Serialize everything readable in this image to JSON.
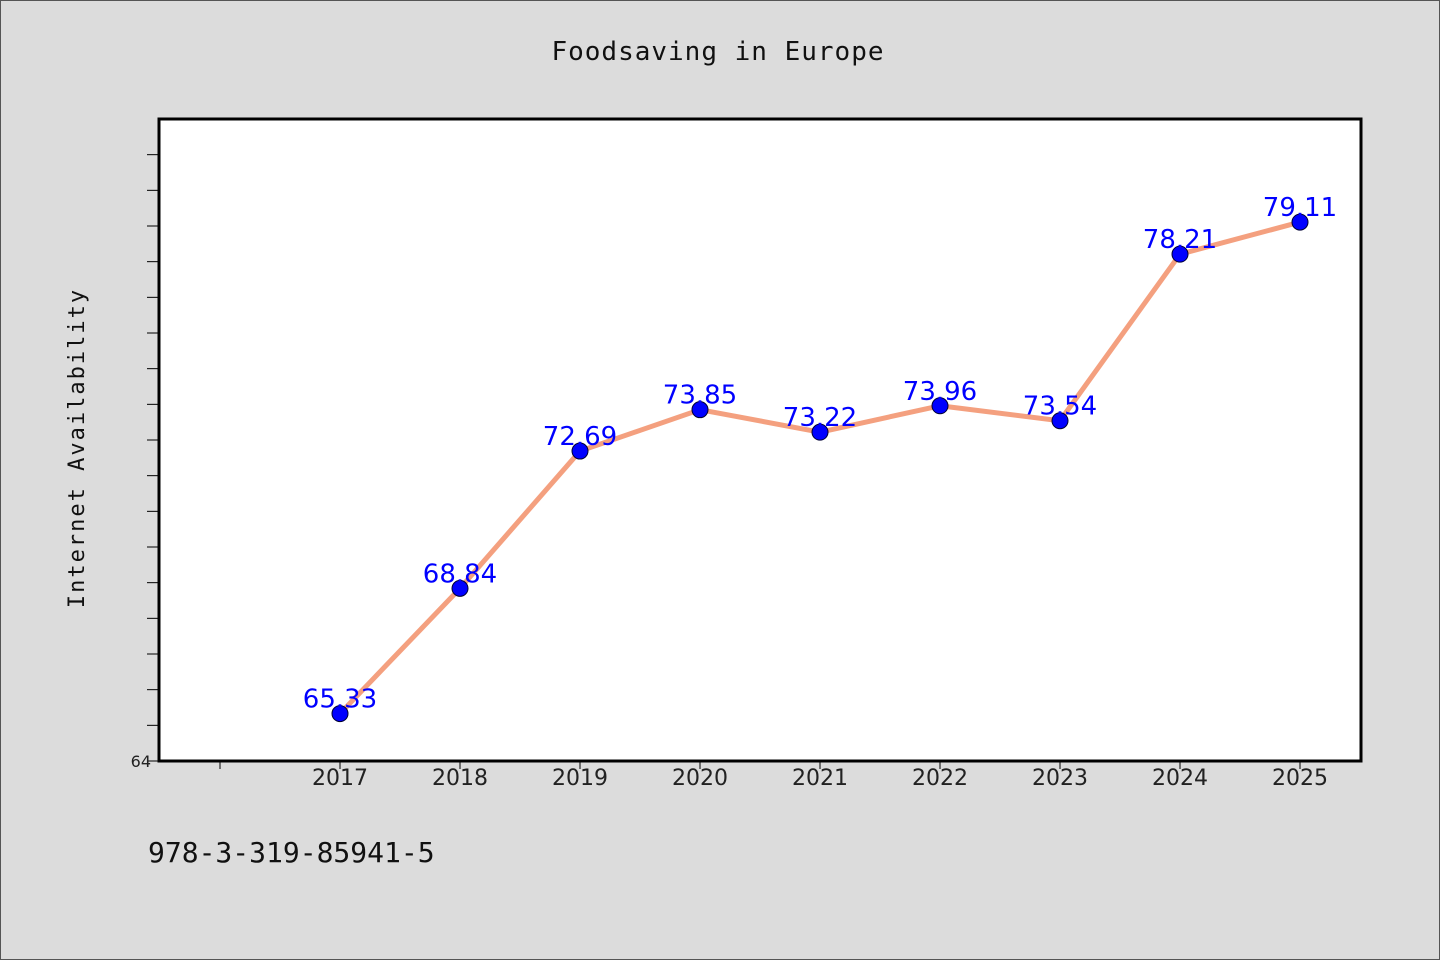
{
  "chart_data": {
    "type": "line",
    "title": "Foodsaving in Europe",
    "xlabel": "",
    "ylabel": "Internet Availability",
    "categories": [
      "2017",
      "2018",
      "2019",
      "2020",
      "2021",
      "2022",
      "2023",
      "2024",
      "2025"
    ],
    "series": [
      {
        "values": [
          65.33,
          68.84,
          72.69,
          73.85,
          73.22,
          73.96,
          73.54,
          78.21,
          79.11
        ],
        "data_labels": [
          "65.33",
          "68.84",
          "72.69",
          "73.85",
          "73.22",
          "73.96",
          "73.54",
          "78.21",
          "79.11"
        ]
      }
    ],
    "ylim": [
      64,
      82
    ],
    "y_tick_labels": [
      "64"
    ],
    "grid": false,
    "legend": "none",
    "colors": {
      "line": "#f4a07f",
      "marker": "#0000ff",
      "label": "#0000ff",
      "background": "#dcdcdc",
      "plot_bg": "#ffffff"
    }
  },
  "footer": {
    "text": "978-3-319-85941-5"
  }
}
